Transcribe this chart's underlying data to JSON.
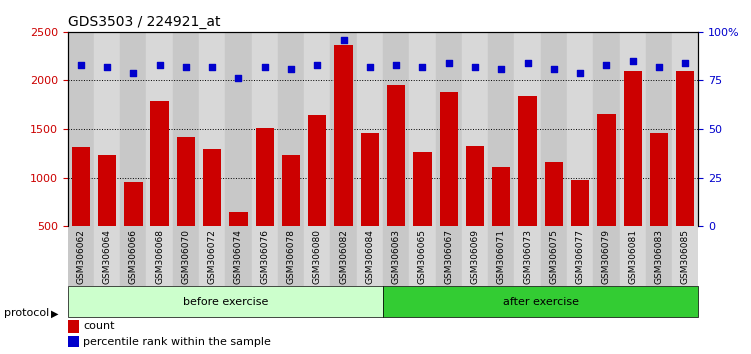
{
  "title": "GDS3503 / 224921_at",
  "categories": [
    "GSM306062",
    "GSM306064",
    "GSM306066",
    "GSM306068",
    "GSM306070",
    "GSM306072",
    "GSM306074",
    "GSM306076",
    "GSM306078",
    "GSM306080",
    "GSM306082",
    "GSM306084",
    "GSM306063",
    "GSM306065",
    "GSM306067",
    "GSM306069",
    "GSM306071",
    "GSM306073",
    "GSM306075",
    "GSM306077",
    "GSM306079",
    "GSM306081",
    "GSM306083",
    "GSM306085"
  ],
  "bar_values": [
    1310,
    1230,
    950,
    1790,
    1420,
    1290,
    650,
    1510,
    1230,
    1640,
    2360,
    1460,
    1950,
    1260,
    1880,
    1320,
    1110,
    1840,
    1160,
    975,
    1650,
    2100,
    1460,
    2100
  ],
  "percentile_values": [
    83,
    82,
    79,
    83,
    82,
    82,
    76,
    82,
    81,
    83,
    96,
    82,
    83,
    82,
    84,
    82,
    81,
    84,
    81,
    79,
    83,
    85,
    82,
    84
  ],
  "n_before": 12,
  "n_after": 12,
  "before_label": "before exercise",
  "after_label": "after exercise",
  "before_color": "#ccffcc",
  "after_color": "#33cc33",
  "bar_color": "#cc0000",
  "dot_color": "#0000cc",
  "ylim_left": [
    500,
    2500
  ],
  "ylim_right": [
    0,
    100
  ],
  "yticks_left": [
    500,
    1000,
    1500,
    2000,
    2500
  ],
  "yticks_right": [
    0,
    25,
    50,
    75,
    100
  ],
  "ytick_labels_right": [
    "0",
    "25",
    "50",
    "75",
    "100%"
  ],
  "legend_count_label": "count",
  "legend_pct_label": "percentile rank within the sample",
  "protocol_label": "protocol",
  "xticklabel_bg": "#d0d0d0",
  "chart_bg": "#ffffff"
}
